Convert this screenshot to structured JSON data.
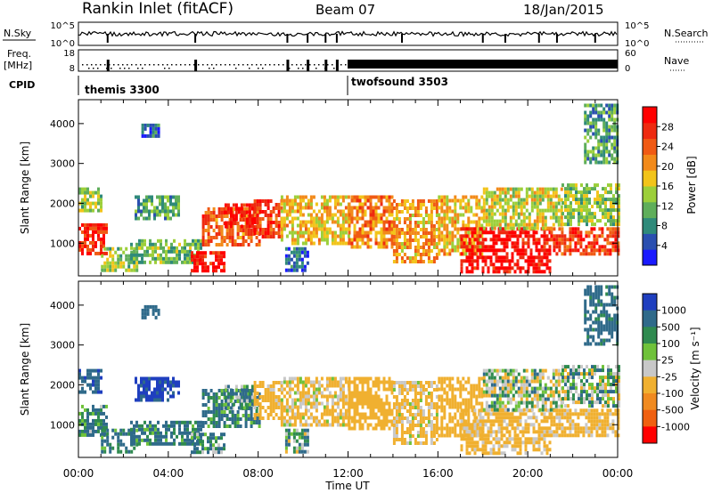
{
  "header": {
    "title": "Rankin Inlet (fitACF)",
    "beam": "Beam 07",
    "date": "18/Jan/2015"
  },
  "nsky_panel": {
    "left_label": "N.Sky",
    "left_ticks": [
      "10^5",
      "10^0"
    ],
    "right_label": "N.Search",
    "right_ticks": [
      "10^5",
      "10^0"
    ]
  },
  "freq_panel": {
    "left_label_1": "Freq.",
    "left_label_2": "[MHz]",
    "left_ticks": [
      "18",
      "8"
    ],
    "right_label": "Nave",
    "right_ticks": [
      "60",
      "0"
    ]
  },
  "cpid": {
    "label": "CPID",
    "modes": [
      {
        "name": "themis 3300",
        "start_hour": 0
      },
      {
        "name": "twofsound 3503",
        "start_hour": 12
      }
    ]
  },
  "x_axis": {
    "label": "Time UT",
    "ticks": [
      "00:00",
      "04:00",
      "08:00",
      "12:00",
      "16:00",
      "20:00",
      "00:00"
    ],
    "range_hours": [
      0,
      24
    ]
  },
  "power_panel": {
    "ylabel": "Slant Range [km]",
    "yticks": [
      "1000",
      "2000",
      "3000",
      "4000"
    ],
    "colorbar_label": "Power [dB]",
    "colorbar_ticks": [
      "4",
      "8",
      "12",
      "16",
      "20",
      "24",
      "28"
    ],
    "colors": [
      "#1a1aff",
      "#2a4fb0",
      "#2f8a7a",
      "#5fae5a",
      "#9ccf3a",
      "#f2c41a",
      "#f28a1a",
      "#f05a14",
      "#ee2a10",
      "#ff0000"
    ]
  },
  "velocity_panel": {
    "ylabel": "Slant Range [km]",
    "yticks": [
      "1000",
      "2000",
      "3000",
      "4000"
    ],
    "colorbar_label": "Velocity [m s⁻¹]",
    "colorbar_ticks": [
      "1000",
      "500",
      "100",
      "25",
      "-25",
      "-100",
      "-500",
      "-1000"
    ],
    "colors": [
      "#1f3fbf",
      "#2f6a8a",
      "#2f8a4f",
      "#6fc23a",
      "#c8c8c8",
      "#f0b030",
      "#f08a20",
      "#f06010",
      "#ff0000"
    ]
  },
  "chart_data": {
    "type": "heatmap",
    "title": "Rankin Inlet (fitACF)",
    "subtitle": "Beam 07",
    "xlabel": "Time UT",
    "ylabel": "Slant Range [km]",
    "xlim_hours": [
      0,
      24
    ],
    "ylim_km": [
      180,
      4600
    ],
    "power_scale_db": [
      0,
      32
    ],
    "velocity_scale": [
      -1000,
      1000
    ],
    "echo_regions": [
      {
        "t0": 0.0,
        "t1": 1.3,
        "r0": 700,
        "r1": 1500,
        "power": 28,
        "velocity": 100
      },
      {
        "t0": 0.0,
        "t1": 1.0,
        "r0": 1800,
        "r1": 2400,
        "power": 14,
        "velocity": 400
      },
      {
        "t0": 1.0,
        "t1": 2.6,
        "r0": 300,
        "r1": 900,
        "power": 14,
        "velocity": 150
      },
      {
        "t0": 2.5,
        "t1": 4.5,
        "r0": 1600,
        "r1": 2200,
        "power": 10,
        "velocity": 600
      },
      {
        "t0": 2.3,
        "t1": 5.5,
        "r0": 500,
        "r1": 1100,
        "power": 12,
        "velocity": 150
      },
      {
        "t0": 2.8,
        "t1": 3.6,
        "r0": 3700,
        "r1": 4000,
        "power": 6,
        "velocity": 300
      },
      {
        "t0": 5.0,
        "t1": 6.5,
        "r0": 300,
        "r1": 800,
        "power": 30,
        "velocity": 80
      },
      {
        "t0": 5.5,
        "t1": 8.0,
        "r0": 1000,
        "r1": 1900,
        "power": 24,
        "velocity": 120
      },
      {
        "t0": 6.5,
        "t1": 7.8,
        "r0": 1400,
        "r1": 2000,
        "power": 30,
        "velocity": 60
      },
      {
        "t0": 7.8,
        "t1": 9.0,
        "r0": 1200,
        "r1": 2100,
        "power": 26,
        "velocity": -200
      },
      {
        "t0": 9.0,
        "t1": 12.0,
        "r0": 1000,
        "r1": 2200,
        "power": 18,
        "velocity": -150
      },
      {
        "t0": 9.2,
        "t1": 10.2,
        "r0": 300,
        "r1": 900,
        "power": 6,
        "velocity": 30
      },
      {
        "t0": 12.0,
        "t1": 14.0,
        "r0": 900,
        "r1": 2200,
        "power": 22,
        "velocity": -300
      },
      {
        "t0": 14.0,
        "t1": 16.0,
        "r0": 500,
        "r1": 2100,
        "power": 20,
        "velocity": -150
      },
      {
        "t0": 16.0,
        "t1": 18.0,
        "r0": 700,
        "r1": 2200,
        "power": 18,
        "velocity": -250
      },
      {
        "t0": 17.0,
        "t1": 21.0,
        "r0": 300,
        "r1": 1400,
        "power": 30,
        "velocity": -180
      },
      {
        "t0": 18.0,
        "t1": 21.5,
        "r0": 1400,
        "r1": 2400,
        "power": 16,
        "velocity": -20
      },
      {
        "t0": 21.0,
        "t1": 24.0,
        "r0": 700,
        "r1": 1400,
        "power": 26,
        "velocity": -200
      },
      {
        "t0": 21.5,
        "t1": 24.0,
        "r0": 1500,
        "r1": 2500,
        "power": 14,
        "velocity": 10
      },
      {
        "t0": 22.5,
        "t1": 24.0,
        "r0": 3000,
        "r1": 4500,
        "power": 10,
        "velocity": 200
      }
    ]
  }
}
